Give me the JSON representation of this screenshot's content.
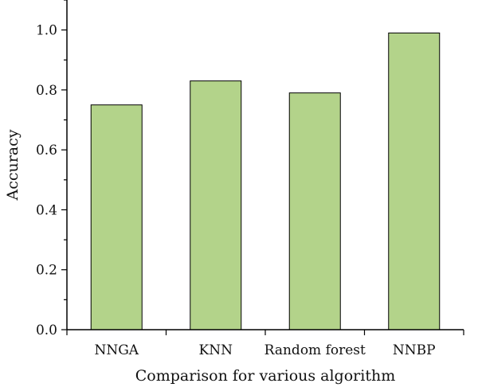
{
  "chart_data": {
    "type": "bar",
    "categories": [
      "NNGA",
      "KNN",
      "Random forest",
      "NNBP"
    ],
    "values": [
      0.75,
      0.83,
      0.79,
      0.99
    ],
    "title": "",
    "xlabel": "Comparison for various algorithm",
    "ylabel": "Accuracy",
    "ylim": [
      0,
      1.1
    ],
    "yticks": [
      0.0,
      0.2,
      0.4,
      0.6,
      0.8,
      1.0
    ],
    "ytick_labels": [
      "0.0",
      "0.2",
      "0.4",
      "0.6",
      "0.8",
      "1.0"
    ],
    "grid": false,
    "legend": "none",
    "bar_color": "#b3d38a"
  }
}
